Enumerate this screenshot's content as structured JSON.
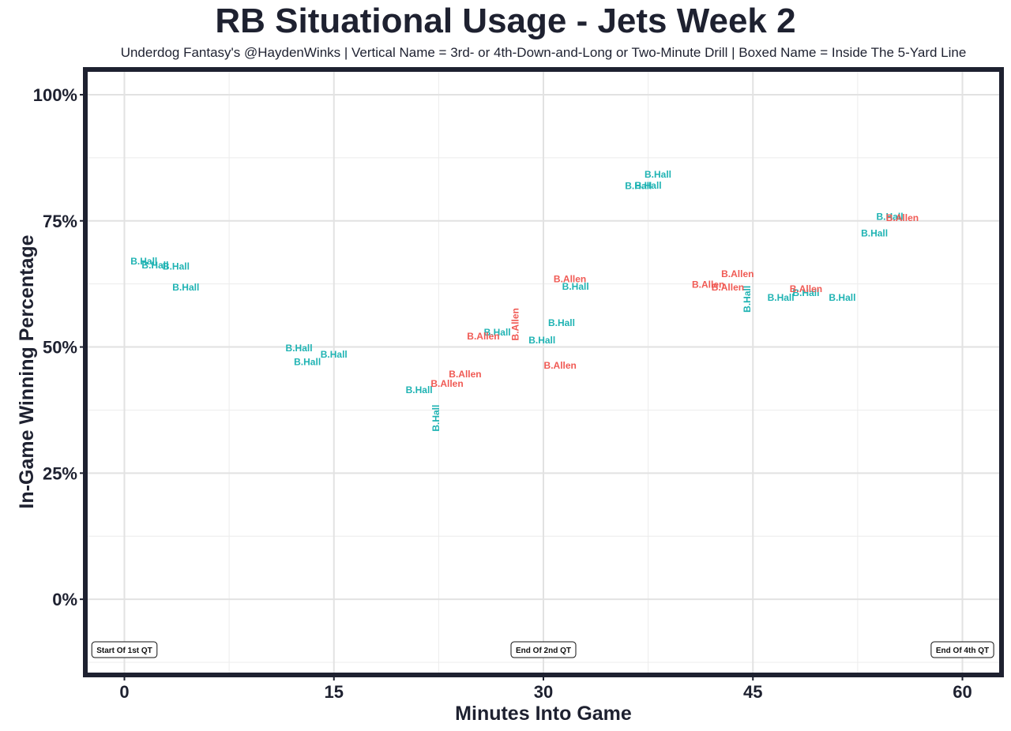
{
  "chart_data": {
    "type": "scatter",
    "title": "RB Situational Usage - Jets Week 2",
    "subtitle": "Underdog Fantasy's @HaydenWinks | Vertical Name = 3rd- or 4th-Down-and-Long or Two-Minute Drill | Boxed Name = Inside The 5-Yard Line",
    "xlabel": "Minutes Into Game",
    "ylabel": "In-Game Winning Percentage",
    "xlim": [
      -2.8,
      62.8
    ],
    "ylim": [
      -15,
      105
    ],
    "xticks": [
      0,
      15,
      30,
      45,
      60
    ],
    "xtick_labels": [
      "0",
      "15",
      "30",
      "45",
      "60"
    ],
    "yticks": [
      0,
      25,
      50,
      75,
      100
    ],
    "ytick_labels": [
      "0%",
      "25%",
      "50%",
      "75%",
      "100%"
    ],
    "grid": true,
    "colors": {
      "B.Hall": "#1fb3b3",
      "B.Allen": "#f05a54"
    },
    "series": [
      {
        "name": "B.Hall",
        "points": [
          {
            "x": 1.4,
            "y": 67.0,
            "vertical": false
          },
          {
            "x": 2.2,
            "y": 66.2,
            "vertical": false
          },
          {
            "x": 3.7,
            "y": 66.0,
            "vertical": false
          },
          {
            "x": 4.4,
            "y": 61.8,
            "vertical": false
          },
          {
            "x": 12.5,
            "y": 49.8,
            "vertical": false
          },
          {
            "x": 15.0,
            "y": 48.5,
            "vertical": false
          },
          {
            "x": 13.1,
            "y": 47.0,
            "vertical": false
          },
          {
            "x": 21.1,
            "y": 41.5,
            "vertical": false
          },
          {
            "x": 22.3,
            "y": 35.9,
            "vertical": true
          },
          {
            "x": 26.7,
            "y": 52.9,
            "vertical": false
          },
          {
            "x": 29.9,
            "y": 51.3,
            "vertical": false
          },
          {
            "x": 31.3,
            "y": 54.8,
            "vertical": false
          },
          {
            "x": 32.3,
            "y": 62.0,
            "vertical": false
          },
          {
            "x": 36.8,
            "y": 81.9,
            "vertical": false
          },
          {
            "x": 37.5,
            "y": 82.0,
            "vertical": false
          },
          {
            "x": 38.2,
            "y": 84.2,
            "vertical": false
          },
          {
            "x": 44.6,
            "y": 59.5,
            "vertical": true
          },
          {
            "x": 47.0,
            "y": 59.8,
            "vertical": false
          },
          {
            "x": 48.8,
            "y": 60.7,
            "vertical": false
          },
          {
            "x": 51.4,
            "y": 59.8,
            "vertical": false
          },
          {
            "x": 53.7,
            "y": 72.5,
            "vertical": false
          },
          {
            "x": 54.8,
            "y": 75.8,
            "vertical": false
          }
        ]
      },
      {
        "name": "B.Allen",
        "points": [
          {
            "x": 23.1,
            "y": 42.7,
            "vertical": false
          },
          {
            "x": 24.4,
            "y": 44.6,
            "vertical": false
          },
          {
            "x": 25.7,
            "y": 52.1,
            "vertical": false
          },
          {
            "x": 28.0,
            "y": 54.5,
            "vertical": true
          },
          {
            "x": 31.2,
            "y": 46.3,
            "vertical": false
          },
          {
            "x": 31.9,
            "y": 63.5,
            "vertical": false
          },
          {
            "x": 41.8,
            "y": 62.4,
            "vertical": false
          },
          {
            "x": 43.2,
            "y": 61.8,
            "vertical": false
          },
          {
            "x": 43.9,
            "y": 64.5,
            "vertical": false
          },
          {
            "x": 48.8,
            "y": 61.5,
            "vertical": false
          },
          {
            "x": 55.7,
            "y": 75.6,
            "vertical": false
          }
        ]
      }
    ],
    "annotations": [
      {
        "text": "Start Of 1st QT",
        "x": 0,
        "y": -10
      },
      {
        "text": "End Of 2nd QT",
        "x": 30,
        "y": -10
      },
      {
        "text": "End Of 4th QT",
        "x": 60,
        "y": -10
      }
    ]
  }
}
